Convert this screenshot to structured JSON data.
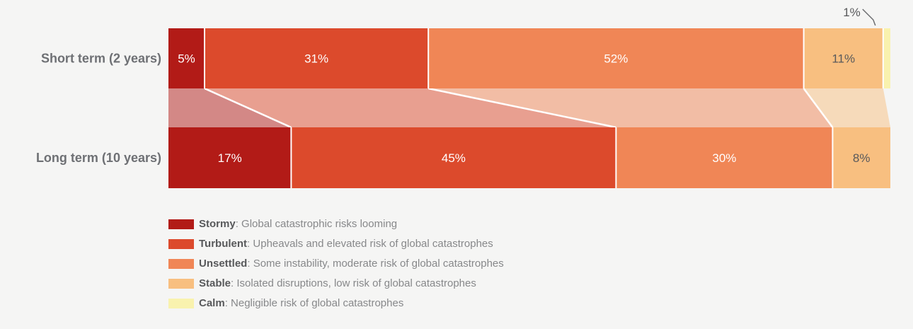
{
  "chart_data": {
    "type": "stacked-bar-flow",
    "unit": "%",
    "background": "#f5f5f4",
    "legend_position": "bottom-left",
    "categories": [
      {
        "name": "Stormy",
        "description": "Global catastrophic risks looming",
        "color": "#b21b17"
      },
      {
        "name": "Turbulent",
        "description": "Upheavals and elevated risk of global catastrophes",
        "color": "#dc4a2c"
      },
      {
        "name": "Unsettled",
        "description": "Some instability, moderate risk of global catastrophes",
        "color": "#f08656"
      },
      {
        "name": "Stable",
        "description": "Isolated disruptions, low risk of global catastrophes",
        "color": "#f8bf80"
      },
      {
        "name": "Calm",
        "description": "Negligible risk of global catastrophes",
        "color": "#f9f2ae"
      }
    ],
    "rows": [
      {
        "label": "Short term (2 years)",
        "values": [
          5,
          31,
          52,
          11,
          1
        ]
      },
      {
        "label": "Long term (10 years)",
        "values": [
          17,
          45,
          30,
          8,
          0
        ]
      }
    ],
    "annotations": [
      {
        "text": "1%",
        "row": 0,
        "category": "Calm"
      }
    ],
    "text_colors": {
      "row_label": "#6e7074",
      "value_on_dark": "#ffffff",
      "value_on_light": "#58595b",
      "annotation": "#58595b",
      "leader_line": "#6d6e71"
    }
  }
}
